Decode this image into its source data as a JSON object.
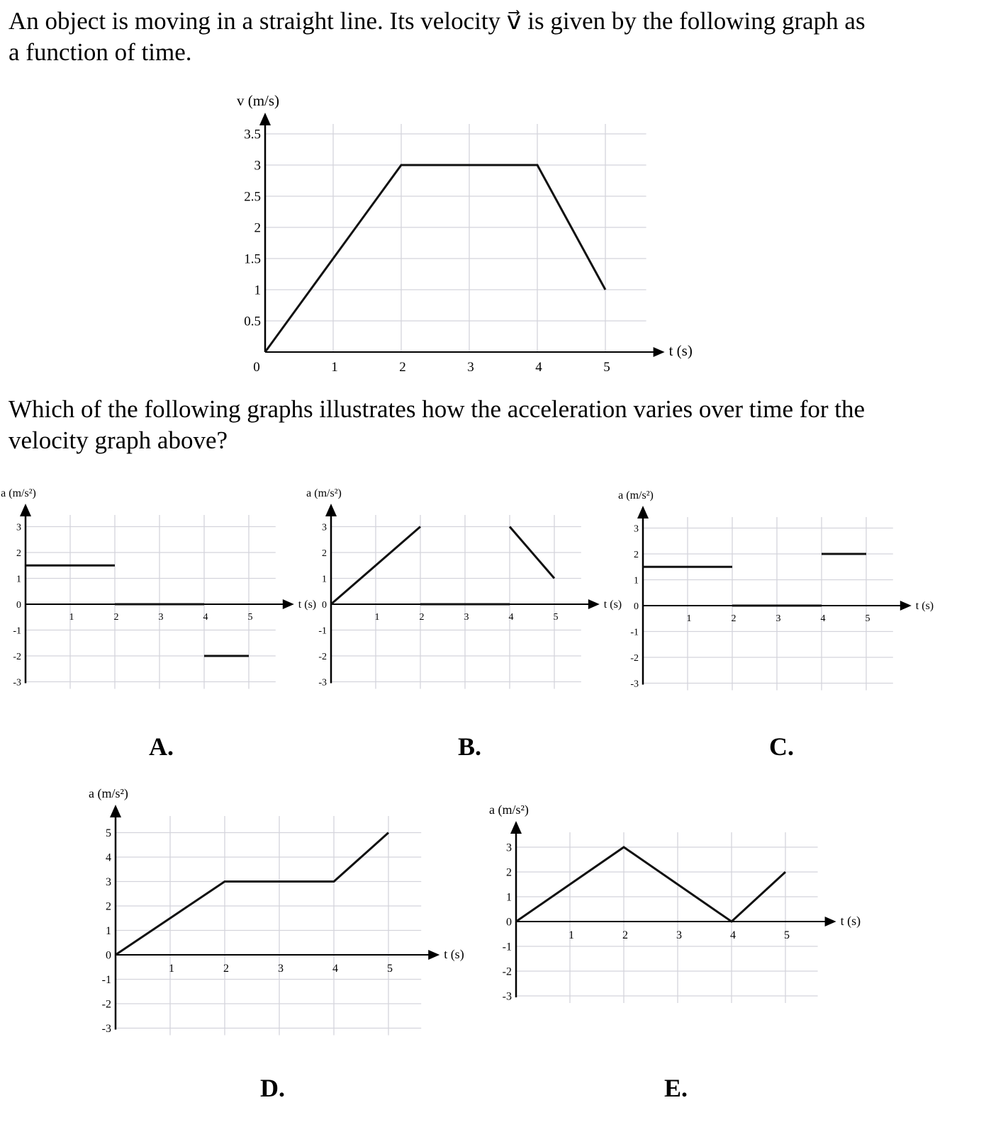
{
  "question": {
    "line1": "An object is moving in a straight line. Its velocity v⃗ is given by the following graph as",
    "line2": "a function of time.",
    "prompt1": "Which of the following graphs illustrates how the acceleration varies over time for the",
    "prompt2": "velocity graph above?"
  },
  "options": [
    "A.",
    "B.",
    "C.",
    "D.",
    "E."
  ],
  "chart_data": [
    {
      "id": "velocity",
      "type": "line",
      "ylabel": "v (m/s)",
      "xlabel": "t (s)",
      "xticks": [
        "0",
        "1",
        "2",
        "3",
        "4",
        "5"
      ],
      "yticks": [
        "0.5",
        "1",
        "1.5",
        "2",
        "2.5",
        "3",
        "3.5"
      ],
      "ylim": [
        0,
        3.5
      ],
      "xlim": [
        0,
        5.6
      ],
      "grid": true,
      "segments": [
        [
          [
            0,
            0
          ],
          [
            2,
            3
          ],
          [
            4,
            3
          ],
          [
            5,
            1
          ]
        ]
      ]
    },
    {
      "id": "A",
      "type": "line",
      "ylabel": "a (m/s²)",
      "xlabel": "t (s)",
      "xticks": [
        "1",
        "2",
        "3",
        "4",
        "5"
      ],
      "yticks": [
        "-3",
        "-2",
        "-1",
        "0",
        "1",
        "2",
        "3"
      ],
      "ylim": [
        -3,
        3
      ],
      "xlim": [
        0,
        5.6
      ],
      "grid": true,
      "segments": [
        [
          [
            0,
            1.5
          ],
          [
            2,
            1.5
          ]
        ],
        [
          [
            2,
            0
          ],
          [
            4,
            0
          ]
        ],
        [
          [
            4,
            -2
          ],
          [
            5,
            -2
          ]
        ]
      ]
    },
    {
      "id": "B",
      "type": "line",
      "ylabel": "a (m/s²)",
      "xlabel": "t (s)",
      "xticks": [
        "1",
        "2",
        "3",
        "4",
        "5"
      ],
      "yticks": [
        "-3",
        "-2",
        "-1",
        "0",
        "1",
        "2",
        "3"
      ],
      "ylim": [
        -3,
        3
      ],
      "xlim": [
        0,
        5.6
      ],
      "grid": true,
      "segments": [
        [
          [
            0,
            0
          ],
          [
            2,
            3
          ]
        ],
        [
          [
            2,
            0
          ],
          [
            4,
            0
          ]
        ],
        [
          [
            4,
            3
          ],
          [
            5,
            1
          ]
        ]
      ]
    },
    {
      "id": "C",
      "type": "line",
      "ylabel": "a (m/s²)",
      "xlabel": "t (s)",
      "xticks": [
        "1",
        "2",
        "3",
        "4",
        "5"
      ],
      "yticks": [
        "-3",
        "-2",
        "-1",
        "0",
        "1",
        "2",
        "3"
      ],
      "ylim": [
        -3,
        3
      ],
      "xlim": [
        0,
        5.6
      ],
      "grid": true,
      "segments": [
        [
          [
            0,
            1.5
          ],
          [
            2,
            1.5
          ]
        ],
        [
          [
            2,
            0
          ],
          [
            4,
            0
          ]
        ],
        [
          [
            4,
            2
          ],
          [
            5,
            2
          ]
        ]
      ]
    },
    {
      "id": "D",
      "type": "line",
      "ylabel": "a (m/s²)",
      "xlabel": "t (s)",
      "xticks": [
        "1",
        "2",
        "3",
        "4",
        "5"
      ],
      "yticks": [
        "-3",
        "-2",
        "-1",
        "0",
        "1",
        "2",
        "3",
        "4",
        "5"
      ],
      "ylim": [
        -3,
        5
      ],
      "xlim": [
        0,
        5.6
      ],
      "grid": true,
      "segments": [
        [
          [
            0,
            0
          ],
          [
            2,
            3
          ],
          [
            4,
            3
          ],
          [
            5,
            5
          ]
        ]
      ]
    },
    {
      "id": "E",
      "type": "line",
      "ylabel": "a (m/s²)",
      "xlabel": "t (s)",
      "xticks": [
        "1",
        "2",
        "3",
        "4",
        "5"
      ],
      "yticks": [
        "-3",
        "-2",
        "-1",
        "0",
        "1",
        "2",
        "3"
      ],
      "ylim": [
        -3,
        3
      ],
      "xlim": [
        0,
        5.6
      ],
      "grid": true,
      "segments": [
        [
          [
            0,
            0
          ],
          [
            2,
            3
          ],
          [
            4,
            0
          ],
          [
            5,
            2
          ]
        ]
      ]
    }
  ]
}
